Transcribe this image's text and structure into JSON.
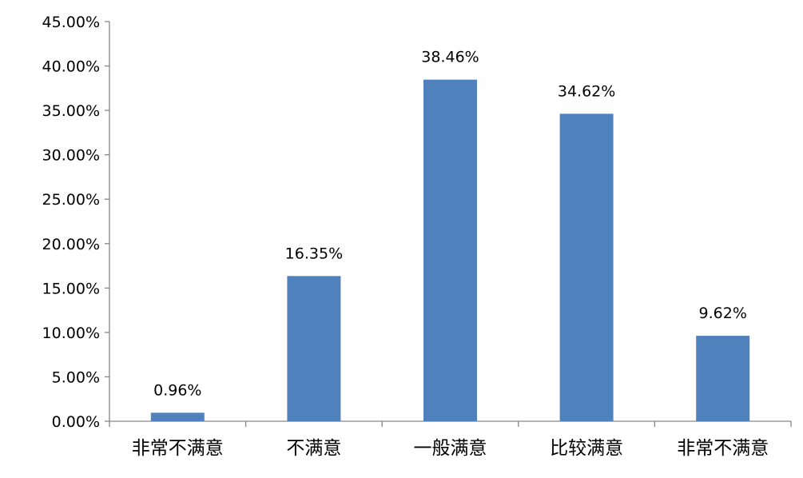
{
  "chart_data": {
    "type": "bar",
    "title": "",
    "xlabel": "",
    "ylabel": "",
    "categories": [
      "非常不满意",
      "不满意",
      "一般满意",
      "比较满意",
      "非常不满意"
    ],
    "values": [
      0.96,
      16.35,
      38.46,
      34.62,
      9.62
    ],
    "data_labels": [
      "0.96%",
      "16.35%",
      "38.46%",
      "34.62%",
      "9.62%"
    ],
    "ylim": [
      0,
      45
    ],
    "yticks": [
      0,
      5,
      10,
      15,
      20,
      25,
      30,
      35,
      40,
      45
    ],
    "ytick_labels": [
      "0.00%",
      "5.00%",
      "10.00%",
      "15.00%",
      "20.00%",
      "25.00%",
      "30.00%",
      "35.00%",
      "40.00%",
      "45.00%"
    ],
    "grid": false,
    "legend": "none",
    "bar_color": "#4F81BD"
  }
}
